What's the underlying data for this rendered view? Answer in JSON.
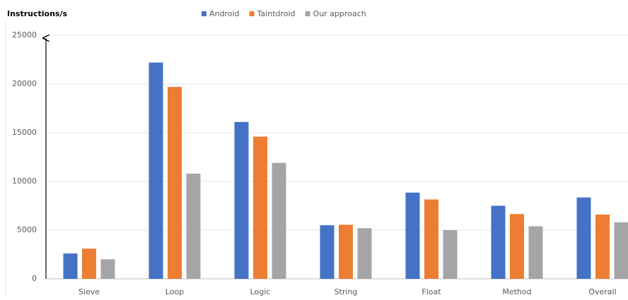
{
  "chart_data": {
    "type": "bar",
    "title": "Instructions/s",
    "categories": [
      "Sieve",
      "Loop",
      "Logic",
      "String",
      "Float",
      "Method",
      "Overall"
    ],
    "series": [
      {
        "name": "Android",
        "color": "#4472c4",
        "values": [
          2600,
          22200,
          16100,
          5500,
          8850,
          7500,
          8350
        ]
      },
      {
        "name": "Taintdroid",
        "color": "#ed7d31",
        "values": [
          3100,
          19700,
          14600,
          5550,
          8150,
          6650,
          6600
        ]
      },
      {
        "name": "Our approach",
        "color": "#a5a5a5",
        "values": [
          2000,
          10800,
          11900,
          5200,
          5000,
          5400,
          5800
        ]
      }
    ],
    "ylim": [
      0,
      25000
    ],
    "yticks": [
      0,
      5000,
      10000,
      15000,
      20000,
      25000
    ],
    "grid": true,
    "legend": "top"
  }
}
